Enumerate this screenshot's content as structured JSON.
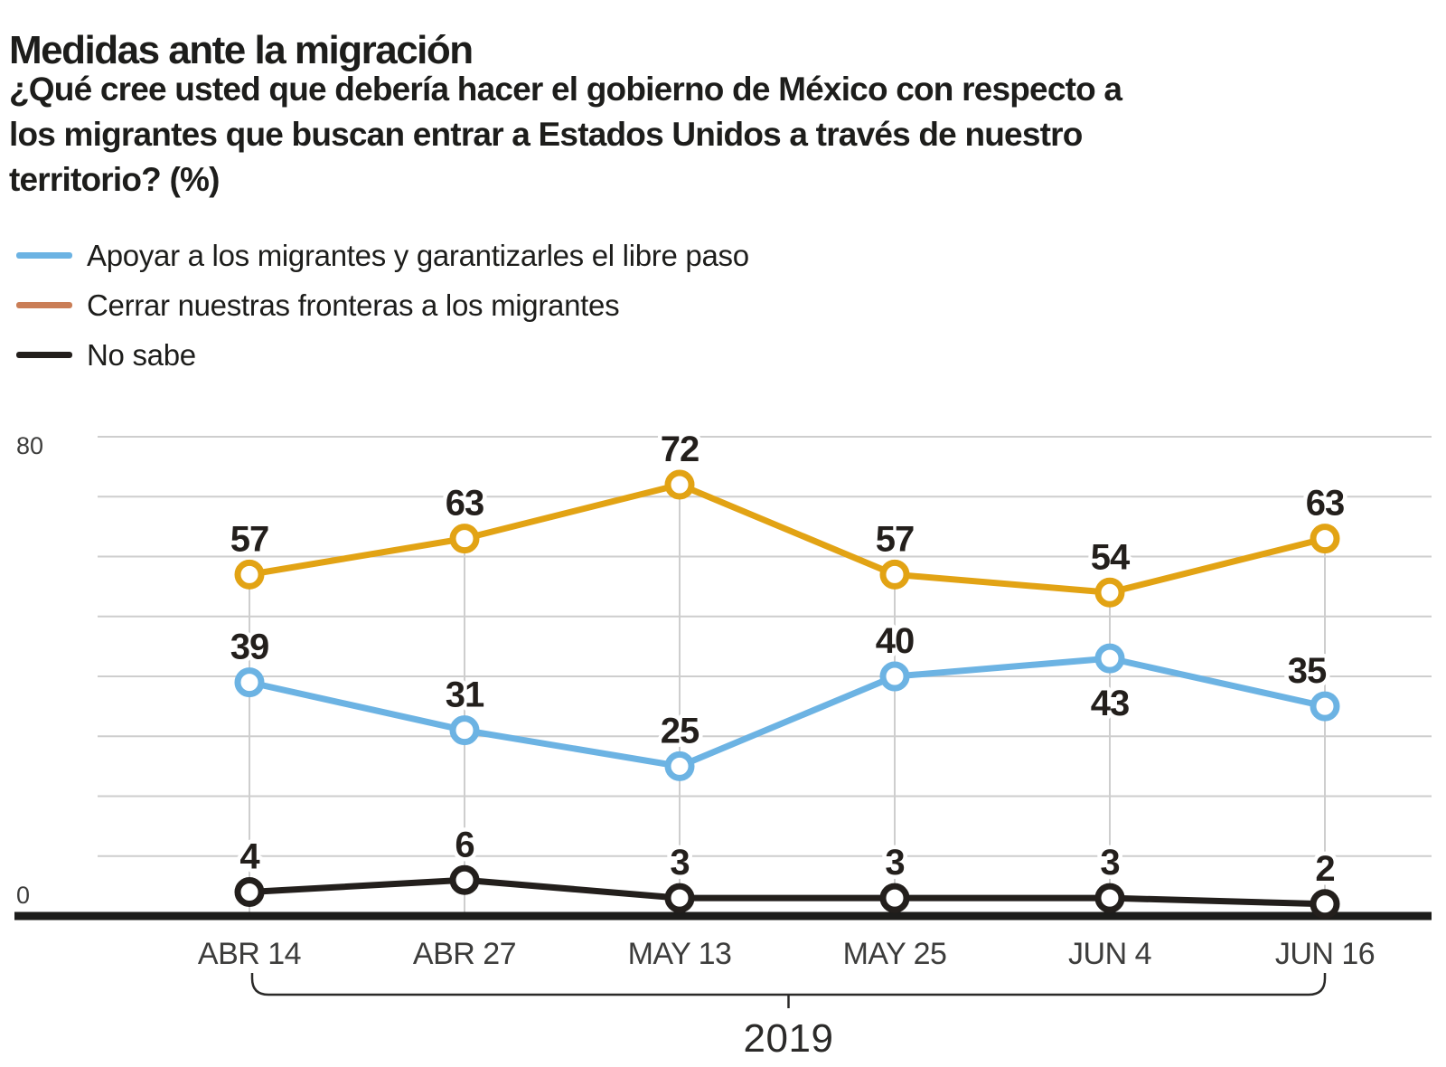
{
  "header": {
    "title": "Medidas ante la migración",
    "subtitle_lines": [
      "¿Qué cree usted que debería hacer el gobierno de México con respecto a",
      "los migrantes que buscan entrar a Estados Unidos a través de nuestro",
      "territorio? (%)"
    ]
  },
  "chart_data": {
    "type": "line",
    "title": "Medidas ante la migración",
    "categories": [
      "ABR 14",
      "ABR 27",
      "MAY 13",
      "MAY 25",
      "JUN 4",
      "JUN 16"
    ],
    "series": [
      {
        "name": "Apoyar a los migrantes y garantizarles el libre paso",
        "color": "#6cb3e3",
        "legend_color": "#6cb3e3",
        "values": [
          39,
          31,
          25,
          40,
          43,
          35
        ]
      },
      {
        "name": "Cerrar nuestras fronteras a los migrantes",
        "color": "#e2a314",
        "legend_color": "#ca7e57",
        "values": [
          57,
          63,
          72,
          57,
          54,
          63
        ]
      },
      {
        "name": "No sabe",
        "color": "#231f1c",
        "legend_color": "#231f1c",
        "values": [
          4,
          6,
          3,
          3,
          3,
          2
        ]
      }
    ],
    "ylim": [
      0,
      80
    ],
    "gridline_step": 10,
    "grid": true,
    "y_axis_labels": {
      "top": "80",
      "bottom": "0"
    },
    "x_group_label": "2019",
    "legend_position": "top-left",
    "axis_color": "#1d1d1b",
    "gridline_color": "#cecece",
    "value_label_color": "#231f1c",
    "tick_label_color": "#3d3d3c"
  }
}
